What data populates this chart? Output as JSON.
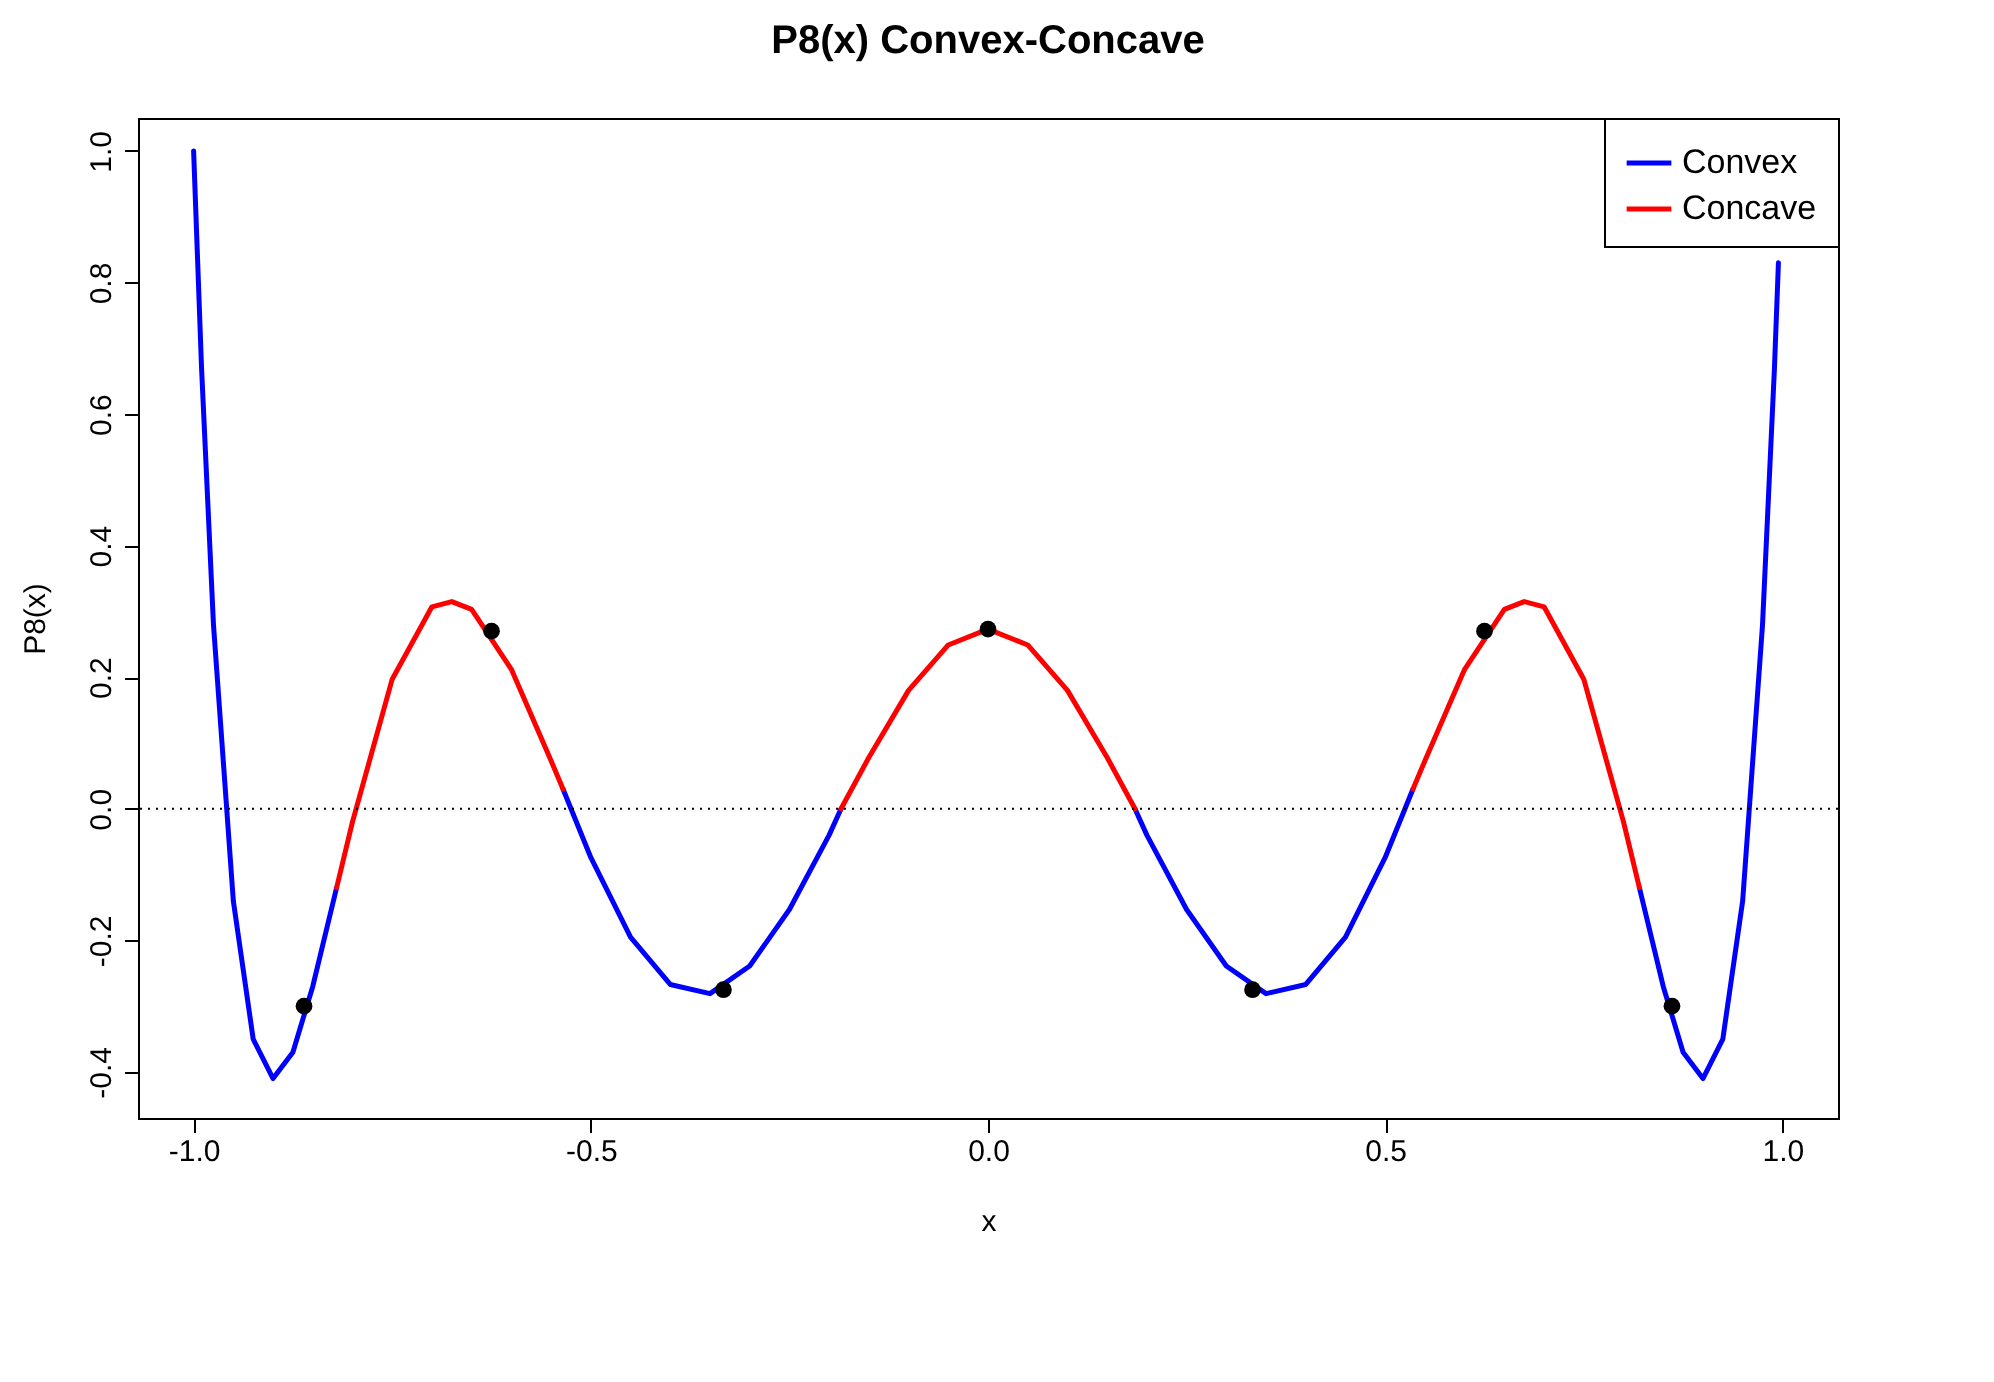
{
  "chart_data": {
    "type": "line",
    "title": "P8(x) Convex-Concave",
    "xlabel": "x",
    "ylabel": "P8(x)",
    "x": [
      -1,
      -0.99,
      -0.975,
      -0.95,
      -0.925,
      -0.9,
      -0.875,
      -0.85,
      -0.82,
      -0.8,
      -0.75,
      -0.7,
      -0.675,
      -0.65,
      -0.6,
      -0.55,
      -0.535,
      -0.5,
      -0.45,
      -0.4,
      -0.35,
      -0.3,
      -0.25,
      -0.2,
      -0.185,
      -0.15,
      -0.1,
      -0.05,
      0,
      0.05,
      0.1,
      0.15,
      0.185,
      0.2,
      0.25,
      0.3,
      0.35,
      0.4,
      0.45,
      0.5,
      0.535,
      0.55,
      0.6,
      0.65,
      0.675,
      0.7,
      0.75,
      0.8,
      0.82,
      0.85,
      0.875,
      0.9,
      0.925,
      0.95,
      0.975,
      0.99,
      0.995
    ],
    "series": [
      {
        "name": "Convex",
        "color": "#0000ff",
        "values": [
          1.0,
          0.67,
          0.28,
          -0.14,
          -0.35,
          -0.41,
          -0.37,
          -0.27,
          -0.12,
          null,
          null,
          null,
          null,
          null,
          null,
          null,
          0.03,
          -0.074,
          -0.195,
          -0.267,
          -0.281,
          -0.239,
          -0.153,
          -0.04,
          0.0,
          null,
          null,
          null,
          null,
          null,
          null,
          null,
          0.0,
          -0.04,
          -0.153,
          -0.239,
          -0.281,
          -0.267,
          -0.195,
          -0.074,
          0.03,
          null,
          null,
          null,
          null,
          null,
          null,
          null,
          -0.12,
          -0.27,
          -0.37,
          -0.41,
          -0.35,
          -0.14,
          0.28,
          0.67,
          0.83
        ]
      },
      {
        "name": "Concave",
        "color": "#ff0000",
        "values": [
          null,
          null,
          null,
          null,
          null,
          null,
          null,
          null,
          -0.12,
          -0.02,
          0.197,
          0.307,
          0.315,
          0.303,
          0.212,
          0.073,
          0.03,
          null,
          null,
          null,
          null,
          null,
          null,
          null,
          0.0,
          0.078,
          0.18,
          0.249,
          0.273,
          0.249,
          0.18,
          0.078,
          0.0,
          null,
          null,
          null,
          null,
          null,
          null,
          null,
          0.03,
          0.073,
          0.212,
          0.303,
          0.315,
          0.307,
          0.197,
          -0.02,
          -0.12,
          null,
          null,
          null,
          null,
          null,
          null,
          null,
          null
        ]
      },
      {
        "type": "scatter",
        "color": "#000000",
        "marker": "circle",
        "x": [
          -0.861,
          -0.625,
          -0.333,
          0,
          0.333,
          0.625,
          0.861
        ],
        "values": [
          -0.3,
          0.27,
          -0.275,
          0.273,
          -0.275,
          0.27,
          -0.3
        ]
      }
    ],
    "xlim": [
      -1.07,
      1.07
    ],
    "xticks": [
      {
        "value": -1,
        "label": "-1.0"
      },
      {
        "value": -0.5,
        "label": "-0.5"
      },
      {
        "value": 0,
        "label": "0.0"
      },
      {
        "value": 0.5,
        "label": "0.5"
      },
      {
        "value": 1,
        "label": "1.0"
      }
    ],
    "ylim": [
      -0.47,
      1.05
    ],
    "yticks": [
      {
        "value": -0.4,
        "label": "-0.4"
      },
      {
        "value": -0.2,
        "label": "-0.2"
      },
      {
        "value": 0,
        "label": "0.0"
      },
      {
        "value": 0.2,
        "label": "0.2"
      },
      {
        "value": 0.4,
        "label": "0.4"
      },
      {
        "value": 0.6,
        "label": "0.6"
      },
      {
        "value": 0.8,
        "label": "0.8"
      },
      {
        "value": 1,
        "label": "1.0"
      }
    ],
    "ref_lines": [
      {
        "axis": "y",
        "value": 0,
        "color": "#000000",
        "line_style": "dotted"
      }
    ],
    "legend": "top right",
    "line_style": "solid"
  }
}
